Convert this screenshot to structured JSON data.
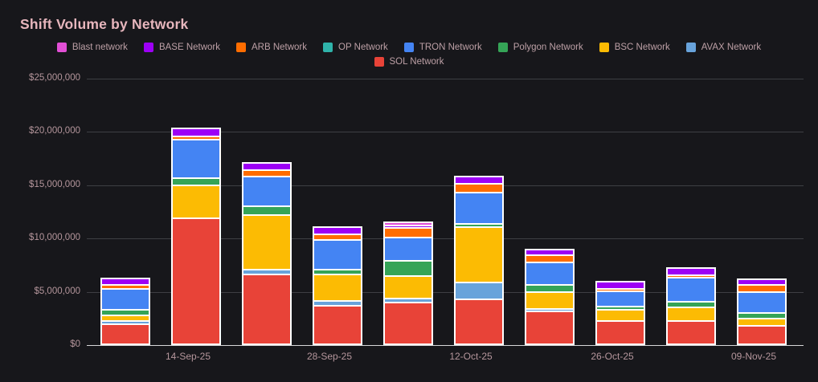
{
  "title": "Shift Volume by Network",
  "colors": {
    "background": "#17171b",
    "title_text": "#e7b6bd",
    "legend_text": "#bda0a6",
    "axis_text": "#b5969c",
    "gridline": "#3e3f44",
    "baseline": "#d8d8da",
    "bar_stroke": "#ffffff"
  },
  "legend": [
    {
      "label": "Blast network",
      "color": "#e24fd6"
    },
    {
      "label": "BASE Network",
      "color": "#9d00f5"
    },
    {
      "label": "ARB Network",
      "color": "#ff6d00"
    },
    {
      "label": "OP Network",
      "color": "#2fb3aa"
    },
    {
      "label": "TRON Network",
      "color": "#4484f3"
    },
    {
      "label": "Polygon Network",
      "color": "#35a457"
    },
    {
      "label": "BSC Network",
      "color": "#fcbb03"
    },
    {
      "label": "AVAX Network",
      "color": "#68a3db"
    },
    {
      "label": "SOL Network",
      "color": "#e84338"
    }
  ],
  "chart_data": {
    "type": "bar",
    "stacked": true,
    "title": "Shift Volume by Network",
    "xlabel": "",
    "ylabel": "",
    "ylim": [
      0,
      25000000
    ],
    "grid": true,
    "legend_position": "top-center",
    "y_tick_labels": [
      "$25,000,000",
      "$20,000,000",
      "$15,000,000",
      "$10,000,000",
      "$5,000,000",
      "$0"
    ],
    "x_tick_labels": [
      "",
      "14-Sep-25",
      "",
      "28-Sep-25",
      "",
      "12-Oct-25",
      "",
      "26-Oct-25",
      "",
      "09-Nov-25"
    ],
    "stack_order_top_to_bottom": [
      "Blast network",
      "BASE Network",
      "ARB Network",
      "OP Network",
      "TRON Network",
      "Polygon Network",
      "BSC Network",
      "AVAX Network",
      "SOL Network"
    ],
    "series": [
      {
        "name": "Blast network",
        "color": "#e24fd6",
        "values": [
          0,
          0,
          0,
          0,
          150000,
          0,
          0,
          0,
          0,
          0
        ]
      },
      {
        "name": "BASE Network",
        "color": "#9d00f5",
        "values": [
          450000,
          600000,
          500000,
          500000,
          250000,
          500000,
          400000,
          500000,
          500000,
          400000
        ]
      },
      {
        "name": "ARB Network",
        "color": "#ff6d00",
        "values": [
          400000,
          300000,
          600000,
          550000,
          900000,
          800000,
          650000,
          250000,
          250000,
          650000
        ]
      },
      {
        "name": "OP Network",
        "color": "#2fb3aa",
        "values": [
          0,
          0,
          0,
          0,
          0,
          0,
          0,
          0,
          0,
          0
        ]
      },
      {
        "name": "TRON Network",
        "color": "#4484f3",
        "values": [
          1950000,
          3600000,
          2800000,
          2800000,
          2150000,
          2950000,
          2100000,
          1400000,
          2250000,
          1950000
        ]
      },
      {
        "name": "Polygon Network",
        "color": "#35a457",
        "values": [
          500000,
          700000,
          800000,
          450000,
          1400000,
          300000,
          700000,
          300000,
          550000,
          500000
        ]
      },
      {
        "name": "BSC Network",
        "color": "#fcbb03",
        "values": [
          550000,
          3100000,
          5100000,
          2450000,
          2100000,
          5200000,
          1600000,
          1050000,
          1250000,
          700000
        ]
      },
      {
        "name": "AVAX Network",
        "color": "#68a3db",
        "values": [
          300000,
          0,
          450000,
          450000,
          350000,
          1550000,
          200000,
          0,
          0,
          0
        ]
      },
      {
        "name": "SOL Network",
        "color": "#e84338",
        "values": [
          1850000,
          11800000,
          6550000,
          3600000,
          3900000,
          4200000,
          3100000,
          2200000,
          2200000,
          1700000
        ]
      }
    ]
  }
}
